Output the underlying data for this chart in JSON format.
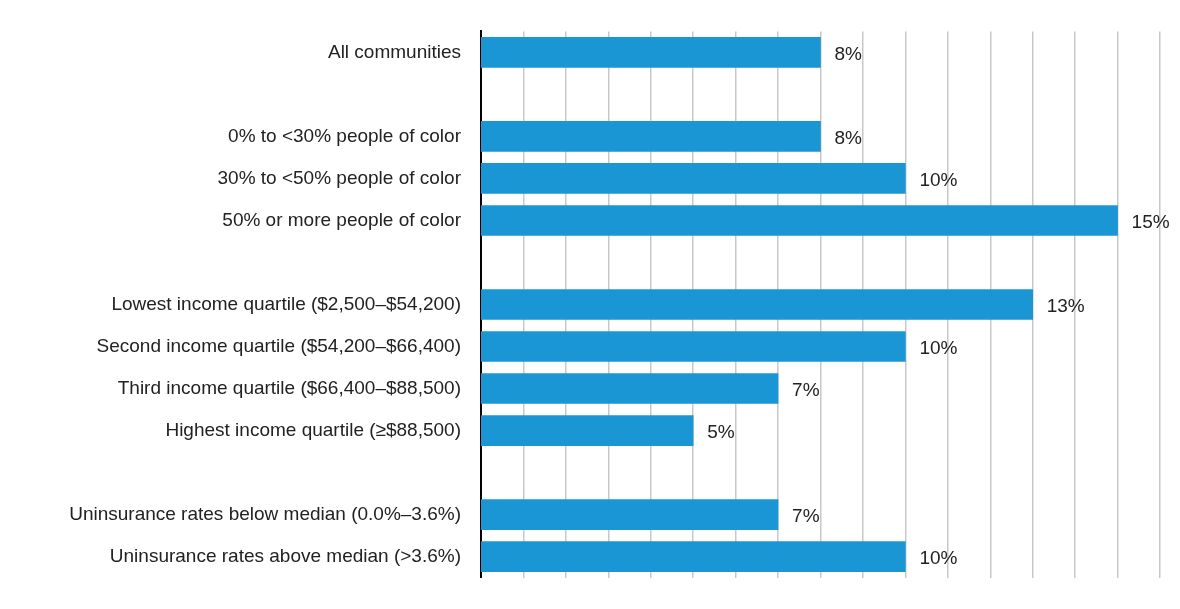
{
  "chart_data": {
    "type": "bar",
    "orientation": "horizontal",
    "categories": [
      "All communities",
      null,
      "0% to <30% people of color",
      "30% to <50% people of color",
      "50% or more people of color",
      null,
      "Lowest income quartile ($2,500–$54,200)",
      "Second income quartile ($54,200–$66,400)",
      "Third income quartile ($66,400–$88,500)",
      "Highest income quartile (≥$88,500)",
      null,
      "Uninsurance rates below median (0.0%–3.6%)",
      "Uninsurance rates above median (>3.6%)"
    ],
    "values": [
      8,
      null,
      8,
      10,
      15,
      null,
      13,
      10,
      7,
      5,
      null,
      7,
      10
    ],
    "value_labels": [
      "8%",
      null,
      "8%",
      "10%",
      "15%",
      null,
      "13%",
      "10%",
      "7%",
      "5%",
      null,
      "7%",
      "10%"
    ],
    "xlim": [
      0,
      16
    ],
    "xticks": [
      {
        "value": 1,
        "label": null
      },
      {
        "value": 2,
        "label": null
      },
      {
        "value": 3,
        "label": null
      },
      {
        "value": 4,
        "label": null
      },
      {
        "value": 5,
        "label": null
      },
      {
        "value": 6,
        "label": null
      },
      {
        "value": 7,
        "label": null
      },
      {
        "value": 8,
        "label": null
      },
      {
        "value": 9,
        "label": null
      },
      {
        "value": 10,
        "label": null
      },
      {
        "value": 11,
        "label": null
      },
      {
        "value": 12,
        "label": null
      },
      {
        "value": 13,
        "label": null
      },
      {
        "value": 14,
        "label": null
      },
      {
        "value": 15,
        "label": null
      },
      {
        "value": 16,
        "label": null
      }
    ],
    "grid": "x",
    "color": "#1a96d4"
  }
}
